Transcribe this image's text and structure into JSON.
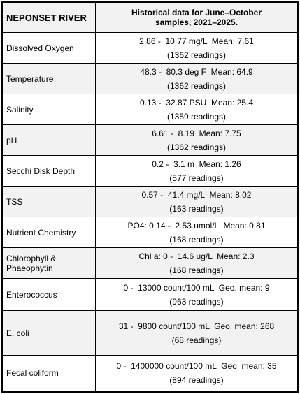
{
  "table": {
    "header": [
      "NEPONSET RIVER",
      "Historical data for June–October samples, 2021–2025."
    ],
    "rows": [
      [
        "Dissolved Oxygen",
        "2.86 -  10.77 mg/L  Mean: 7.61",
        "(1362 readings)"
      ],
      [
        "Temperature",
        "48.3 -  80.3 deg F  Mean: 64.9",
        "(1362 readings)"
      ],
      [
        "Salinity",
        "0.13 -  32.87 PSU  Mean: 25.4",
        "(1359 readings)"
      ],
      [
        "pH",
        "6.61 -  8.19  Mean: 7.75",
        "(1362 readings)"
      ],
      [
        "Secchi Disk Depth",
        "0.2 -  3.1 m  Mean: 1.26",
        "(577 readings)"
      ],
      [
        "TSS",
        "0.57 -  41.4 mg/L  Mean: 8.02",
        "(163 readings)"
      ],
      [
        "Nutrient Chemistry",
        "PO4: 0.14 -  2.53 umol/L  Mean: 0.81",
        "(168 readings)"
      ],
      [
        "Chlorophyll & Phaeophytin",
        "Chl a: 0 -  14.6 ug/L  Mean: 2.3",
        "(168 readings)"
      ],
      [
        "Enterococcus",
        "0 -  13000 count/100 mL  Geo. mean: 9",
        "(963 readings)"
      ],
      [
        "E. coli",
        "31 -  9800 count/100 mL  Geo. mean: 268",
        "(68 readings)"
      ],
      [
        "Fecal coliform",
        "0 -  1400000 count/100 mL  Geo. mean: 35",
        "(894 readings)"
      ]
    ]
  }
}
